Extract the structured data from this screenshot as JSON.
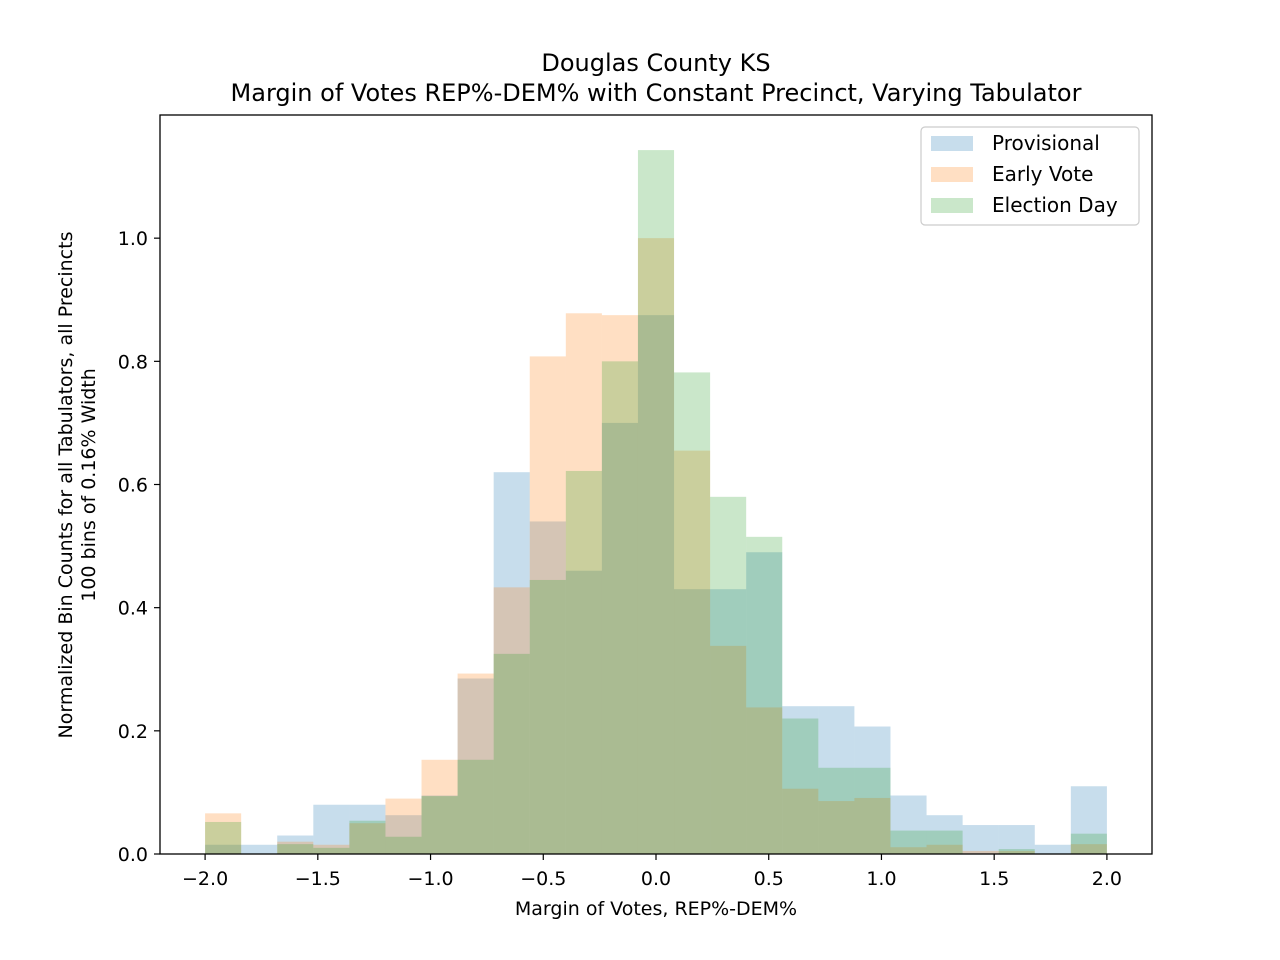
{
  "chart_data": {
    "type": "histogram",
    "title": "Douglas County KS",
    "subtitle": "Margin of Votes REP%-DEM% with Constant Precinct, Varying Tabulator",
    "xlabel": "Margin of Votes, REP%-DEM%",
    "ylabel": [
      "Normalized Bin Counts for all Tabulators, all Precincts",
      "100 bins of 0.16% Width"
    ],
    "xlim": [
      -2.2,
      2.2
    ],
    "ylim": [
      0,
      1.2
    ],
    "xticks": [
      -2.0,
      -1.5,
      -1.0,
      -0.5,
      0.0,
      0.5,
      1.0,
      1.5,
      2.0
    ],
    "xtick_labels": [
      "−2.0",
      "−1.5",
      "−1.0",
      "−0.5",
      "0.0",
      "0.5",
      "1.0",
      "1.5",
      "2.0"
    ],
    "yticks": [
      0.0,
      0.2,
      0.4,
      0.6,
      0.8,
      1.0
    ],
    "ytick_labels": [
      "0.0",
      "0.2",
      "0.4",
      "0.6",
      "0.8",
      "1.0"
    ],
    "bin_edges": [
      -2.0,
      -1.84,
      -1.68,
      -1.52,
      -1.36,
      -1.2,
      -1.04,
      -0.88,
      -0.72,
      -0.56,
      -0.4,
      -0.24,
      -0.08,
      0.08,
      0.24,
      0.4,
      0.56,
      0.72,
      0.88,
      1.04,
      1.2,
      1.36,
      1.52,
      1.68,
      1.84,
      2.0
    ],
    "legend_position": "upper right",
    "series": [
      {
        "name": "Provisional",
        "color": "#1f77b4",
        "values": [
          0.015,
          0.015,
          0.03,
          0.08,
          0.08,
          0.063,
          0.095,
          0.285,
          0.62,
          0.54,
          0.46,
          0.7,
          0.875,
          0.43,
          0.43,
          0.49,
          0.24,
          0.24,
          0.207,
          0.095,
          0.063,
          0.047,
          0.047,
          0.015,
          0.11
        ]
      },
      {
        "name": "Early Vote",
        "color": "#ff7f0e",
        "values": [
          0.066,
          0.0,
          0.02,
          0.015,
          0.05,
          0.09,
          0.153,
          0.293,
          0.433,
          0.808,
          0.878,
          0.875,
          1.0,
          0.655,
          0.338,
          0.238,
          0.106,
          0.086,
          0.091,
          0.011,
          0.015,
          0.005,
          0.005,
          0.0,
          0.016
        ]
      },
      {
        "name": "Election Day",
        "color": "#2ca02c",
        "values": [
          0.052,
          0.0,
          0.016,
          0.01,
          0.054,
          0.028,
          0.094,
          0.153,
          0.325,
          0.445,
          0.622,
          0.8,
          1.143,
          0.782,
          0.58,
          0.515,
          0.22,
          0.14,
          0.14,
          0.038,
          0.038,
          0.0,
          0.008,
          0.0,
          0.033
        ]
      }
    ]
  }
}
